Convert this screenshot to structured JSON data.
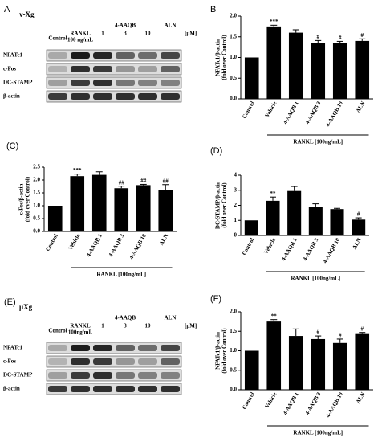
{
  "blots": [
    {
      "letter": "A",
      "title": "v-Xg",
      "control": "Control",
      "rankl": "RANKL",
      "rankl_dose": "100 ng/mL",
      "drug": "4-AAQB",
      "doses": [
        "1",
        "3",
        "10"
      ],
      "aln": "ALN",
      "unit": "[μM]",
      "rows": [
        "NFATc1",
        "c-Fos",
        "DC-STAMP",
        "β-actin"
      ]
    },
    {
      "letter": "(E)",
      "title": "μXg",
      "control": "Control",
      "rankl": "RANKL",
      "rankl_dose": "100ng/mL",
      "drug": "4-AAQB",
      "doses": [
        "1",
        "3",
        "10"
      ],
      "aln": "ALN",
      "unit": "[μM]",
      "rows": [
        "NFATc1",
        "c-Fos",
        "DC-STAMP",
        "β-actin"
      ]
    }
  ],
  "chart_data": [
    {
      "type": "bar",
      "title": "B",
      "ylabel": "NFATc1/β-actin",
      "ylabel2": "(fold over Control)",
      "group_label": "RANKL [100ng/mL]",
      "categories": [
        "Control",
        "Vehicle",
        "4-AAQB 1",
        "4-AAQB 3",
        "4-AAQB 10",
        "ALN"
      ],
      "values": [
        1.0,
        1.75,
        1.6,
        1.35,
        1.35,
        1.4
      ],
      "errors": [
        0,
        0.03,
        0.07,
        0.06,
        0.04,
        0.05
      ],
      "annotations": [
        null,
        "***",
        null,
        "#",
        "#",
        "#"
      ],
      "color": "#000000",
      "ylim": [
        0,
        2
      ],
      "yticks": [
        {
          "value": 0,
          "label": "0.0"
        },
        {
          "value": 0.5,
          "label": "0.5"
        },
        {
          "value": 1,
          "label": "1.0"
        },
        {
          "value": 1.5,
          "label": "1.5"
        },
        {
          "value": 2,
          "label": "2.0"
        }
      ]
    },
    {
      "type": "bar",
      "title": "(C)",
      "ylabel": "c-Fos/β-actin",
      "ylabel2": "(fold over Control)",
      "group_label": "RANKL [100ng/mL]",
      "categories": [
        "Control",
        "Vehicle",
        "4-AAQB 1",
        "4-AAQB 3",
        "4-AAQB 10",
        "ALN"
      ],
      "values": [
        1.0,
        2.15,
        2.2,
        1.68,
        1.8,
        1.62
      ],
      "errors": [
        0,
        0.08,
        0.12,
        0.08,
        0.03,
        0.2
      ],
      "annotations": [
        null,
        "***",
        null,
        "##",
        "##",
        "##"
      ],
      "color": "#000000",
      "ylim": [
        0,
        2.5
      ],
      "yticks": [
        {
          "value": 0,
          "label": "0.0"
        },
        {
          "value": 0.5,
          "label": "0.5"
        },
        {
          "value": 1,
          "label": "1.0"
        },
        {
          "value": 1.5,
          "label": "1.5"
        },
        {
          "value": 2,
          "label": "2.0"
        },
        {
          "value": 2.5,
          "label": "2.5"
        }
      ]
    },
    {
      "type": "bar",
      "title": "(D)",
      "ylabel": "DC-STAMP/β-actin",
      "ylabel2": "(fold over Control)",
      "group_label": "RANKL [100ng/mL]",
      "categories": [
        "Control",
        "Vehicle",
        "4-AAQB 1",
        "4-AAQB 3",
        "4-AAQB 10",
        "ALN"
      ],
      "values": [
        1.0,
        2.3,
        2.95,
        1.9,
        1.75,
        1.05
      ],
      "errors": [
        0,
        0.25,
        0.3,
        0.2,
        0.05,
        0.12
      ],
      "annotations": [
        null,
        "**",
        null,
        null,
        null,
        "#"
      ],
      "color": "#000000",
      "ylim": [
        0,
        4
      ],
      "yticks": [
        0,
        1,
        2,
        3,
        4
      ]
    },
    {
      "type": "bar",
      "title": "(F)",
      "ylabel": "NFATc1/β-actin",
      "ylabel2": "(fold over Control)",
      "group_label": "RANKL [100ng/mL]",
      "categories": [
        "Control",
        "Vehicle",
        "4-AAQB 1",
        "4-AAQB 3",
        "4-AAQB 10",
        "ALN"
      ],
      "values": [
        1.0,
        1.75,
        1.38,
        1.3,
        1.2,
        1.45
      ],
      "errors": [
        0,
        0.05,
        0.18,
        0.08,
        0.1,
        0.02
      ],
      "annotations": [
        null,
        "**",
        null,
        "#",
        "#",
        "#"
      ],
      "color": "#000000",
      "ylim": [
        0,
        2
      ],
      "yticks": [
        {
          "value": 0,
          "label": "0.0"
        },
        {
          "value": 0.5,
          "label": "0.5"
        },
        {
          "value": 1,
          "label": "1.0"
        },
        {
          "value": 1.5,
          "label": "1.5"
        },
        {
          "value": 2,
          "label": "2.0"
        }
      ]
    }
  ]
}
